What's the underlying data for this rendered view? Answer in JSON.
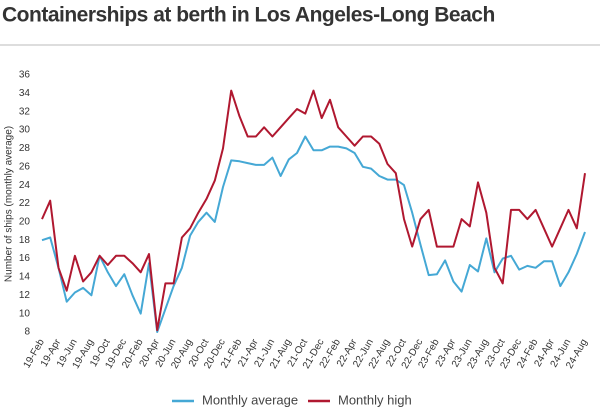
{
  "chart_data": {
    "type": "line",
    "title": "Containerships at berth in Los Angeles-Long Beach",
    "y_label": "Number of ships (monthly average)",
    "categories": [
      "19-Feb",
      null,
      "19-Apr",
      null,
      "19-Jun",
      null,
      "19-Aug",
      null,
      "19-Oct",
      null,
      "19-Dec",
      null,
      "20-Feb",
      null,
      "20-Apr",
      null,
      "20-Jun",
      null,
      "20-Aug",
      null,
      "20-Oct",
      null,
      "20-Dec",
      null,
      "21-Feb",
      null,
      "21-Apr",
      null,
      "21-Jun",
      null,
      "21-Aug",
      null,
      "21-Oct",
      null,
      "21-Dec",
      null,
      "22-Feb",
      null,
      "22-Apr",
      null,
      "22-Jun",
      null,
      "22-Aug",
      null,
      "22-Oct",
      null,
      "22-Dec",
      null,
      "23-Feb",
      null,
      "23-Apr",
      null,
      "23-Jun",
      null,
      "23-Aug",
      null,
      "23-Oct",
      null,
      "23-Dec",
      null,
      "24-Feb",
      null,
      "24-Apr",
      null,
      "24-Jun",
      null,
      "24-Aug"
    ],
    "series": [
      {
        "name": "Monthly average",
        "color": "#45a8d5",
        "values": [
          18,
          18.3,
          15,
          11.3,
          12.3,
          12.8,
          12,
          16.3,
          14.5,
          13,
          14.3,
          12,
          10,
          15.5,
          8,
          10.5,
          13,
          15,
          18.5,
          20,
          21,
          20,
          23.8,
          26.7,
          26.6,
          26.4,
          26.2,
          26.2,
          27,
          25,
          26.8,
          27.5,
          29.3,
          27.8,
          27.8,
          28.2,
          28.2,
          28,
          27.5,
          26,
          25.8,
          25,
          24.6,
          24.6,
          24,
          21,
          17.5,
          14.2,
          14.3,
          15.8,
          13.5,
          12.4,
          15.3,
          14.6,
          18.2,
          14.5,
          16,
          16.3,
          14.8,
          15.2,
          15,
          15.7,
          15.7,
          13,
          14.5,
          16.5,
          18.9
        ]
      },
      {
        "name": "Monthly high",
        "color": "#b01830",
        "values": [
          20.3,
          22.3,
          15,
          12.5,
          16.3,
          13.5,
          14.5,
          16.3,
          15.3,
          16.3,
          16.3,
          15.5,
          14.5,
          16.5,
          8.2,
          13.3,
          13.3,
          18.3,
          19.3,
          21,
          22.5,
          24.5,
          28,
          34.3,
          31.5,
          29.3,
          29.3,
          30.3,
          29.3,
          30.3,
          31.3,
          32.3,
          31.8,
          34.3,
          31.3,
          33.3,
          30.3,
          29.3,
          28.3,
          29.3,
          29.3,
          28.5,
          26.3,
          25.3,
          20.3,
          17.3,
          20.3,
          21.3,
          17.3,
          17.3,
          17.3,
          20.3,
          19.5,
          24.3,
          21,
          15,
          13.3,
          21.3,
          21.3,
          20.3,
          21.3,
          19.3,
          17.3,
          19.3,
          21.3,
          19.3,
          25.3
        ]
      }
    ],
    "ylim": [
      8,
      36
    ],
    "yticks": [
      8,
      10,
      12,
      14,
      16,
      18,
      20,
      22,
      24,
      26,
      28,
      30,
      32,
      34,
      36
    ],
    "grid": false,
    "legend": "bottom"
  }
}
